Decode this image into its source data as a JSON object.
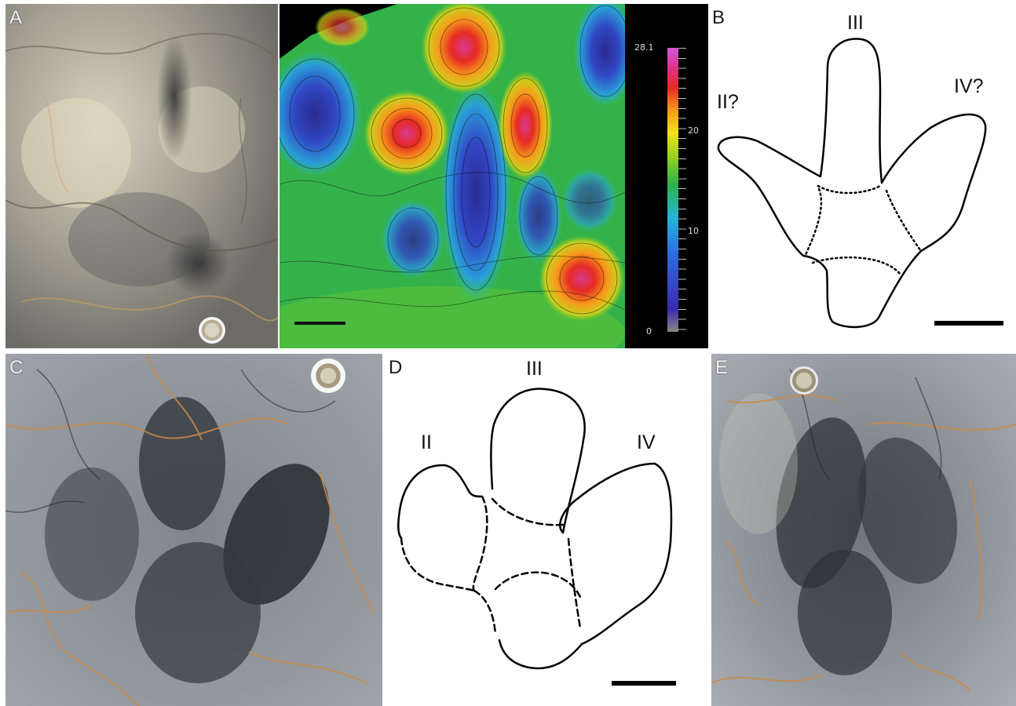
{
  "panels": {
    "a": {
      "label": "A"
    },
    "b": {
      "label": "B",
      "toes": {
        "left": "II?",
        "middle": "III",
        "right": "IV?"
      }
    },
    "c": {
      "label": "C"
    },
    "d": {
      "label": "D",
      "toes": {
        "left": "II",
        "middle": "III",
        "right": "IV"
      }
    },
    "e": {
      "label": "E"
    }
  },
  "colorbar": {
    "ticks": [
      "28.1",
      "20",
      "10",
      "0"
    ],
    "colors": [
      "#888888",
      "#3a2bb0",
      "#2f6de0",
      "#23b6d8",
      "#2fb04a",
      "#9ad320",
      "#f2e21c",
      "#f79a1a",
      "#e62a24",
      "#e0328c",
      "#cf5bd8"
    ]
  },
  "colors": {
    "rock_light": "#b7b3a6",
    "rock_dark": "#3f4246",
    "rock_grey": "#8e9398",
    "sediment_orange": "#c9894a",
    "scalebar": "#111111",
    "map_background": "#000000"
  },
  "icons": [
    "coin-scale-icon"
  ]
}
